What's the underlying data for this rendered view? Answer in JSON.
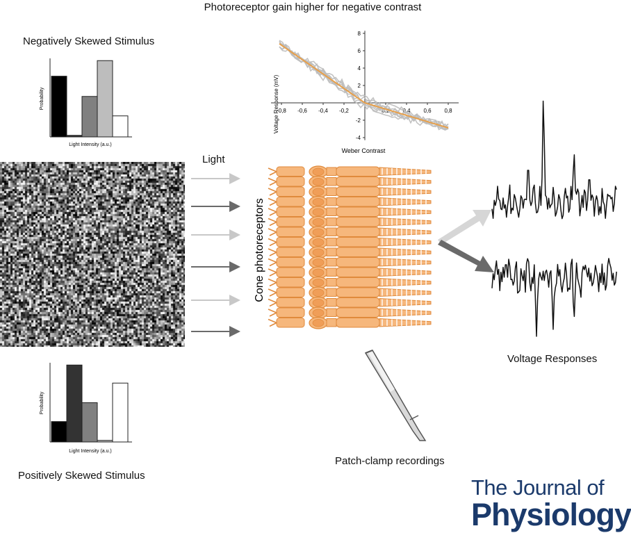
{
  "top_title": "Photoreceptor gain higher for negative contrast",
  "neg_hist": {
    "title": "Negatively Skewed Stimulus",
    "ylabel": "Probability",
    "xlabel": "Light Intensity (a.u.)",
    "values": [
      0.78,
      0.02,
      0.52,
      0.98,
      0.27
    ],
    "colors": [
      "#000000",
      "#333333",
      "#808080",
      "#bdbdbd",
      "#ffffff"
    ]
  },
  "pos_hist": {
    "title": "Positively Skewed Stimulus",
    "ylabel": "Probability",
    "xlabel": "Light Intensity (a.u.)",
    "values": [
      0.26,
      0.98,
      0.5,
      0.02,
      0.75
    ],
    "colors": [
      "#000000",
      "#333333",
      "#808080",
      "#bdbdbd",
      "#ffffff"
    ]
  },
  "scatter_plot": {
    "ylabel": "Voltage Response (mV)",
    "xlabel": "Weber Contrast",
    "x_ticks": [
      "-0,8",
      "-0,6",
      "-0,4",
      "-0,2",
      "0,2",
      "0,4",
      "0,6",
      "0,8"
    ],
    "y_ticks": [
      "8",
      "6",
      "4",
      "2",
      "-2",
      "-4"
    ],
    "fit_color": "#e8a04a"
  },
  "light_label": "Light",
  "cone_label": "Cone photoreceptors",
  "voltage_label": "Voltage Responses",
  "patch_label": "Patch-clamp recordings",
  "journal": {
    "line1": "The Journal of",
    "line2": "Physiology"
  },
  "colors": {
    "cone_fill": "#f6b77c",
    "cone_stroke": "#e08a3c",
    "arrow_light": "#c8c8c8",
    "arrow_dark": "#6a6a6a",
    "journal_blue": "#1b3a6b"
  }
}
